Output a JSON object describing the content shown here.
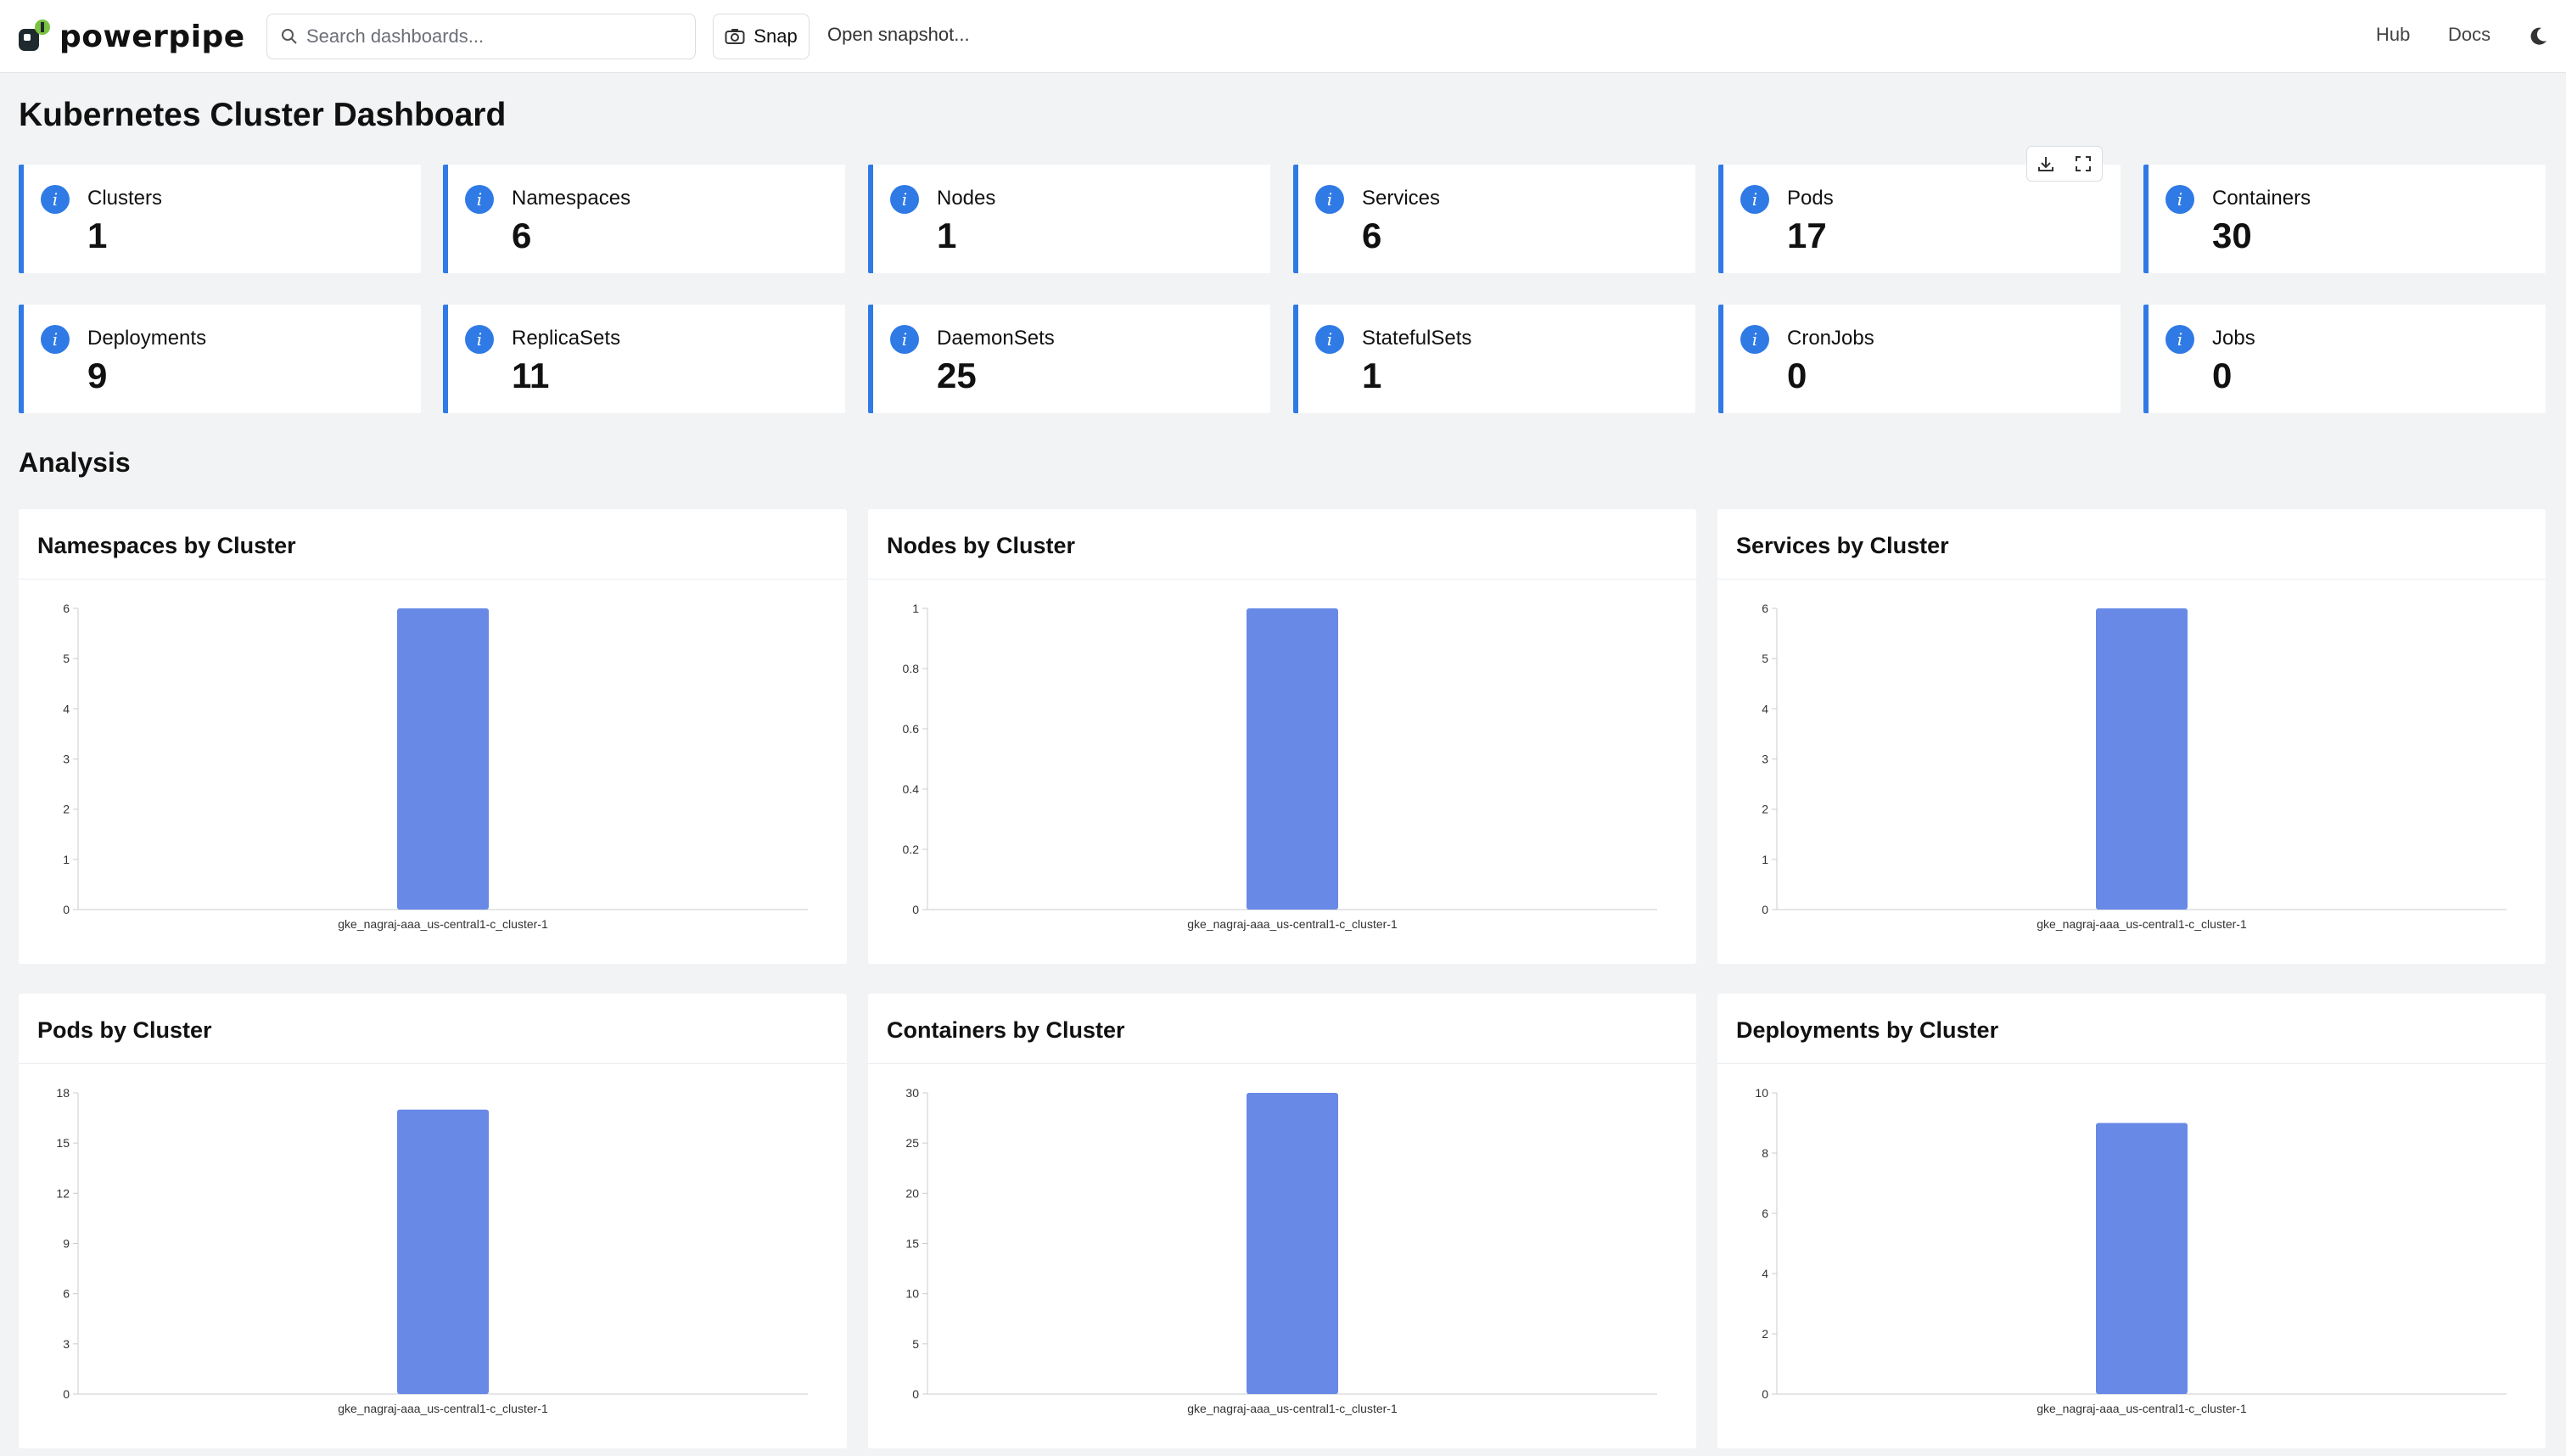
{
  "app": {
    "logo_text": "powerpipe",
    "search_placeholder": "Search dashboards...",
    "snap_label": "Snap",
    "open_snapshot_label": "Open snapshot...",
    "nav": {
      "hub": "Hub",
      "docs": "Docs"
    }
  },
  "page": {
    "title": "Kubernetes Cluster Dashboard"
  },
  "cards": [
    {
      "label": "Clusters",
      "value": "1"
    },
    {
      "label": "Namespaces",
      "value": "6"
    },
    {
      "label": "Nodes",
      "value": "1"
    },
    {
      "label": "Services",
      "value": "6"
    },
    {
      "label": "Pods",
      "value": "17"
    },
    {
      "label": "Containers",
      "value": "30"
    },
    {
      "label": "Deployments",
      "value": "9"
    },
    {
      "label": "ReplicaSets",
      "value": "11"
    },
    {
      "label": "DaemonSets",
      "value": "25"
    },
    {
      "label": "StatefulSets",
      "value": "1"
    },
    {
      "label": "CronJobs",
      "value": "0"
    },
    {
      "label": "Jobs",
      "value": "0"
    }
  ],
  "analysis": {
    "title": "Analysis"
  },
  "colors": {
    "accent": "#2f7ae5",
    "bar": "#6889e6"
  },
  "chart_data": [
    {
      "type": "bar",
      "title": "Namespaces by Cluster",
      "categories": [
        "gke_nagraj-aaa_us-central1-c_cluster-1"
      ],
      "values": [
        6
      ],
      "ylim": [
        0,
        6
      ],
      "ticks": [
        "0",
        "1",
        "2",
        "3",
        "4",
        "5",
        "6"
      ]
    },
    {
      "type": "bar",
      "title": "Nodes by Cluster",
      "categories": [
        "gke_nagraj-aaa_us-central1-c_cluster-1"
      ],
      "values": [
        1
      ],
      "ylim": [
        0,
        1
      ],
      "ticks": [
        "0",
        "0.2",
        "0.4",
        "0.6",
        "0.8",
        "1"
      ]
    },
    {
      "type": "bar",
      "title": "Services by Cluster",
      "categories": [
        "gke_nagraj-aaa_us-central1-c_cluster-1"
      ],
      "values": [
        6
      ],
      "ylim": [
        0,
        6
      ],
      "ticks": [
        "0",
        "1",
        "2",
        "3",
        "4",
        "5",
        "6"
      ]
    },
    {
      "type": "bar",
      "title": "Pods by Cluster",
      "categories": [
        "gke_nagraj-aaa_us-central1-c_cluster-1"
      ],
      "values": [
        17
      ],
      "ylim": [
        0,
        18
      ],
      "ticks": [
        "0",
        "3",
        "6",
        "9",
        "12",
        "15",
        "18"
      ]
    },
    {
      "type": "bar",
      "title": "Containers by Cluster",
      "categories": [
        "gke_nagraj-aaa_us-central1-c_cluster-1"
      ],
      "values": [
        30
      ],
      "ylim": [
        0,
        30
      ],
      "ticks": [
        "0",
        "5",
        "10",
        "15",
        "20",
        "25",
        "30"
      ]
    },
    {
      "type": "bar",
      "title": "Deployments by Cluster",
      "categories": [
        "gke_nagraj-aaa_us-central1-c_cluster-1"
      ],
      "values": [
        9
      ],
      "ylim": [
        0,
        10
      ],
      "ticks": [
        "0",
        "2",
        "4",
        "6",
        "8",
        "10"
      ]
    }
  ]
}
